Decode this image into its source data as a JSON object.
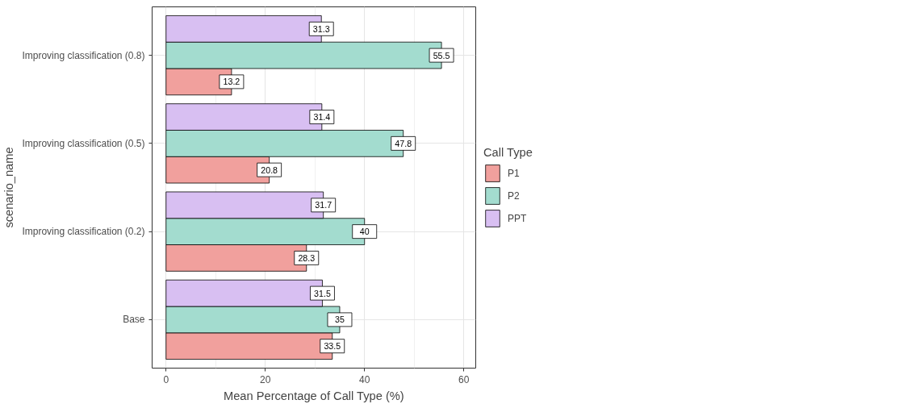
{
  "chart_data": {
    "type": "bar",
    "orientation": "horizontal",
    "xlabel": "Mean Percentage of Call Type (%)",
    "ylabel": "scenario_name",
    "legend_title": "Call Type",
    "categories": [
      "Improving classification (0.8)",
      "Improving classification (0.5)",
      "Improving classification (0.2)",
      "Base"
    ],
    "series": [
      {
        "name": "P1",
        "color": "#f1a09d",
        "values": [
          13.2,
          20.8,
          28.3,
          33.5
        ]
      },
      {
        "name": "P2",
        "color": "#a3dccf",
        "values": [
          55.5,
          47.8,
          40,
          35
        ]
      },
      {
        "name": "PPT",
        "color": "#d8bff2",
        "values": [
          31.3,
          31.4,
          31.7,
          31.5
        ]
      }
    ],
    "xlim": [
      -2.8,
      62.4
    ],
    "xticks": [
      0,
      20,
      40,
      60
    ],
    "grid": true,
    "legend": "right",
    "data_labels": true
  }
}
